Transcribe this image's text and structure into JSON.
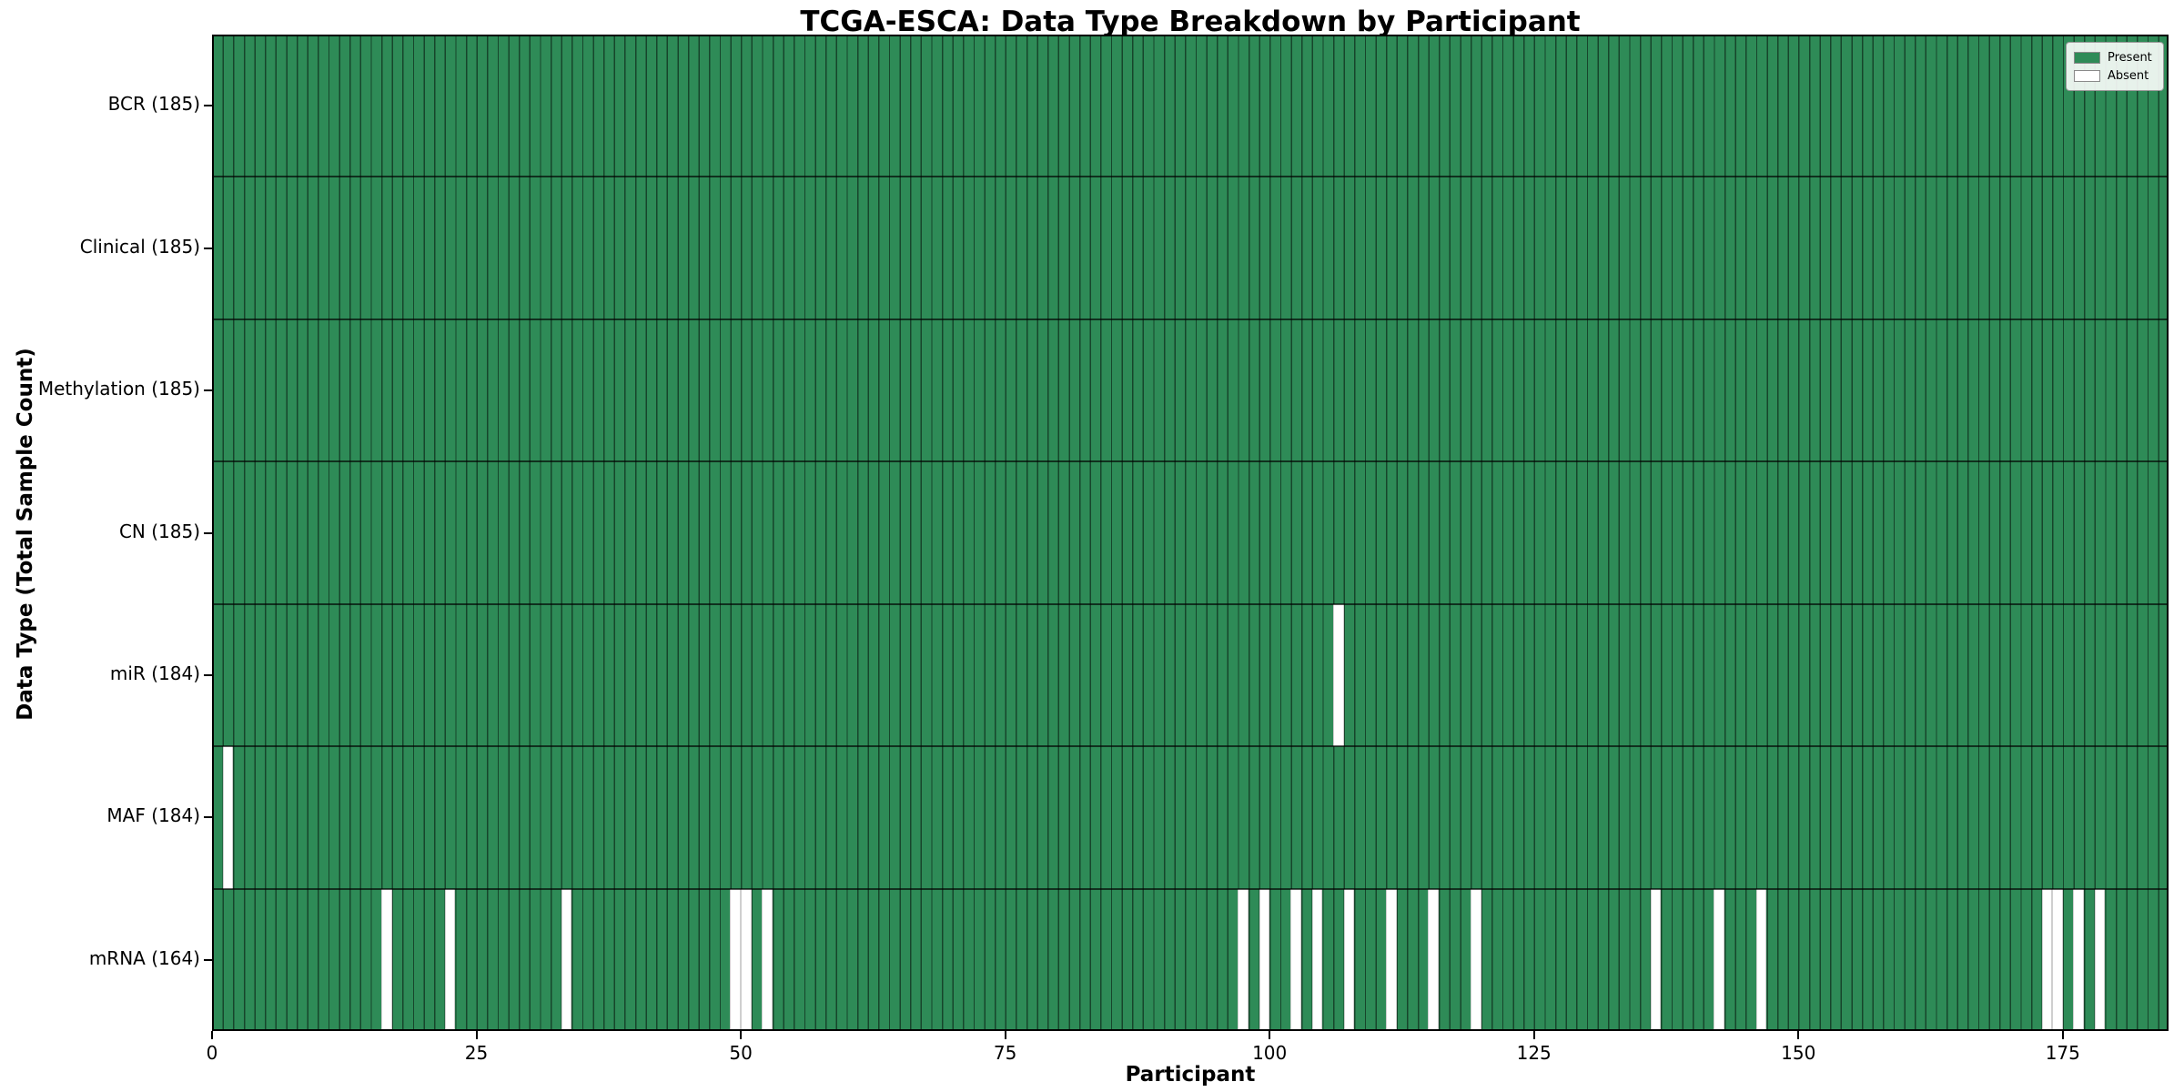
{
  "chart_data": {
    "type": "heatmap",
    "title": "TCGA-ESCA: Data Type Breakdown by Participant",
    "xlabel": "Participant",
    "ylabel": "Data Type (Total Sample Count)",
    "n_participants": 185,
    "x_range": [
      0,
      185
    ],
    "x_ticks": [
      0,
      25,
      50,
      75,
      100,
      125,
      150,
      175
    ],
    "grid": "cell-edges",
    "legend_position": "upper-right",
    "legend": [
      {
        "label": "Present",
        "color": "#2e8b57"
      },
      {
        "label": "Absent",
        "color": "#ffffff"
      }
    ],
    "colors": {
      "present": "#2e8b57",
      "absent": "#ffffff",
      "cell_edge_on_green": "rgba(0,0,0,0.5)",
      "cell_edge_on_white": "#cfcfcf"
    },
    "rows": [
      {
        "label": "BCR (185)",
        "total": 185,
        "absent_participants": []
      },
      {
        "label": "Clinical (185)",
        "total": 185,
        "absent_participants": []
      },
      {
        "label": "Methylation (185)",
        "total": 185,
        "absent_participants": []
      },
      {
        "label": "CN (185)",
        "total": 185,
        "absent_participants": []
      },
      {
        "label": "miR (184)",
        "total": 184,
        "absent_participants": [
          106
        ]
      },
      {
        "label": "MAF (184)",
        "total": 184,
        "absent_participants": [
          1
        ]
      },
      {
        "label": "mRNA (164)",
        "total": 164,
        "absent_participants": [
          16,
          22,
          33,
          49,
          50,
          52,
          97,
          99,
          102,
          104,
          107,
          111,
          115,
          119,
          136,
          142,
          146,
          173,
          174,
          176,
          178
        ]
      }
    ]
  }
}
